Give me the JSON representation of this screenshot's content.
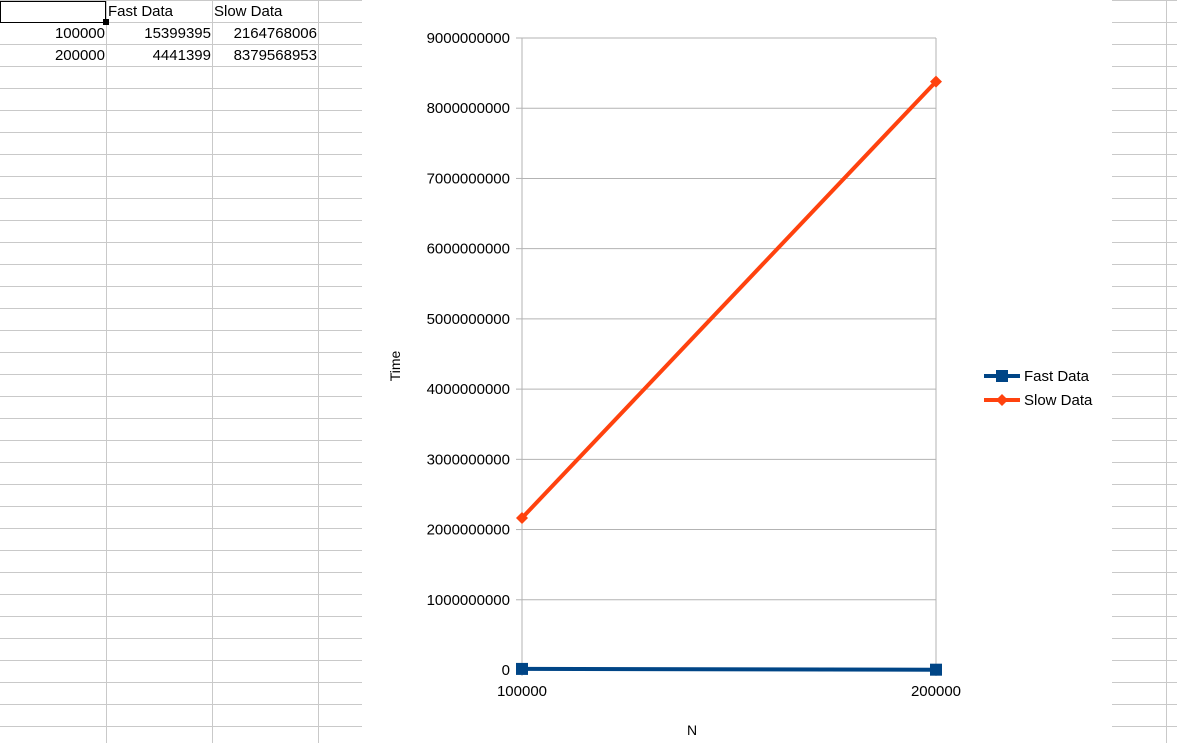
{
  "sheet": {
    "header_row": [
      "",
      "Fast Data",
      "Slow Data"
    ],
    "rows": [
      [
        "100000",
        "15399395",
        "2164768006"
      ],
      [
        "200000",
        "4441399",
        "8379568953"
      ]
    ]
  },
  "chart_data": {
    "type": "line",
    "title": "",
    "xlabel": "N",
    "ylabel": "Time",
    "categories": [
      "100000",
      "200000"
    ],
    "ylim": [
      0,
      9000000000
    ],
    "yticks": [
      0,
      1000000000,
      2000000000,
      3000000000,
      4000000000,
      5000000000,
      6000000000,
      7000000000,
      8000000000,
      9000000000
    ],
    "grid": true,
    "legend_position": "right",
    "series": [
      {
        "name": "Fast Data",
        "values": [
          15399395,
          4441399
        ],
        "color": "#004586",
        "marker": "square"
      },
      {
        "name": "Slow Data",
        "values": [
          2164768006,
          8379568953
        ],
        "color": "#ff420e",
        "marker": "diamond"
      }
    ]
  }
}
